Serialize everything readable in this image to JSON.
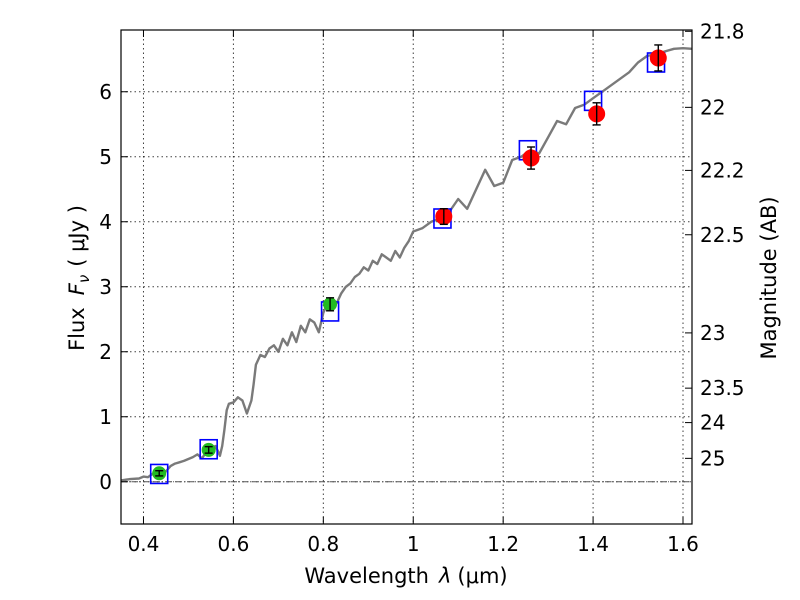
{
  "chart_data": {
    "type": "scatter",
    "xlabel_prefix": "Wavelength",
    "xlabel_symbol": "λ",
    "xlabel_unit": "(μm)",
    "ylabel_prefix": "Flux",
    "ylabel_symbol_main": "F",
    "ylabel_symbol_sub": "ν",
    "ylabel_unit": "( μJy )",
    "y2label": "Magnitude (AB)",
    "xlim": [
      0.35,
      1.62
    ],
    "ylim": [
      -0.65,
      6.95
    ],
    "x_ticks": [
      0.4,
      0.6,
      0.8,
      1.0,
      1.2,
      1.4,
      1.6
    ],
    "x_tick_labels": [
      "0.4",
      "0.6",
      "0.8",
      "1",
      "1.2",
      "1.4",
      "1.6"
    ],
    "y_ticks": [
      0,
      1,
      2,
      3,
      4,
      5,
      6
    ],
    "y_tick_labels": [
      "0",
      "1",
      "2",
      "3",
      "4",
      "5",
      "6"
    ],
    "mag_ticks": [
      {
        "flux": 6.93,
        "label": "21.8"
      },
      {
        "flux": 5.76,
        "label": "22"
      },
      {
        "flux": 4.79,
        "label": "22.2"
      },
      {
        "flux": 3.8,
        "label": "22.5"
      },
      {
        "flux": 2.29,
        "label": "23"
      },
      {
        "flux": 1.44,
        "label": "23.5"
      },
      {
        "flux": 0.91,
        "label": "24"
      },
      {
        "flux": 0.36,
        "label": "25"
      }
    ],
    "grid": true,
    "zero_line": 0,
    "colors": {
      "model": "#7a7a7a",
      "synthetic_box": "#0000ff",
      "detection_green": "#22bb22",
      "detection_red": "#ff0000",
      "errorbar": "#000000"
    },
    "series": [
      {
        "name": "model spectrum",
        "type": "line",
        "x": [
          0.35,
          0.37,
          0.39,
          0.4,
          0.41,
          0.42,
          0.43,
          0.44,
          0.45,
          0.46,
          0.47,
          0.48,
          0.49,
          0.5,
          0.51,
          0.52,
          0.53,
          0.54,
          0.55,
          0.56,
          0.565,
          0.57,
          0.575,
          0.58,
          0.585,
          0.59,
          0.6,
          0.61,
          0.62,
          0.63,
          0.64,
          0.645,
          0.65,
          0.66,
          0.67,
          0.68,
          0.69,
          0.7,
          0.71,
          0.72,
          0.73,
          0.74,
          0.75,
          0.76,
          0.77,
          0.78,
          0.79,
          0.8,
          0.81,
          0.82,
          0.83,
          0.84,
          0.85,
          0.86,
          0.87,
          0.88,
          0.89,
          0.9,
          0.91,
          0.92,
          0.93,
          0.94,
          0.95,
          0.96,
          0.97,
          0.98,
          0.99,
          1.0,
          1.02,
          1.04,
          1.06,
          1.08,
          1.1,
          1.12,
          1.14,
          1.16,
          1.18,
          1.2,
          1.22,
          1.24,
          1.26,
          1.28,
          1.3,
          1.32,
          1.34,
          1.36,
          1.38,
          1.4,
          1.42,
          1.44,
          1.46,
          1.48,
          1.5,
          1.52,
          1.54,
          1.56,
          1.58,
          1.6,
          1.62
        ],
        "y": [
          0.02,
          0.04,
          0.05,
          0.08,
          0.07,
          0.12,
          0.15,
          0.18,
          0.16,
          0.24,
          0.28,
          0.3,
          0.32,
          0.35,
          0.38,
          0.42,
          0.36,
          0.46,
          0.5,
          0.55,
          0.48,
          0.4,
          0.55,
          0.8,
          1.1,
          1.2,
          1.22,
          1.3,
          1.25,
          1.05,
          1.25,
          1.5,
          1.8,
          1.95,
          1.92,
          2.05,
          2.1,
          2.0,
          2.2,
          2.1,
          2.3,
          2.15,
          2.4,
          2.3,
          2.5,
          2.45,
          2.3,
          2.6,
          2.75,
          2.7,
          2.75,
          2.9,
          3.0,
          3.05,
          3.15,
          3.2,
          3.3,
          3.25,
          3.4,
          3.35,
          3.5,
          3.45,
          3.4,
          3.55,
          3.45,
          3.6,
          3.7,
          3.85,
          3.9,
          4.0,
          4.05,
          4.15,
          4.35,
          4.2,
          4.5,
          4.8,
          4.55,
          4.6,
          4.95,
          5.0,
          5.1,
          5.05,
          5.3,
          5.55,
          5.5,
          5.75,
          5.8,
          5.9,
          6.0,
          6.1,
          6.2,
          6.3,
          6.45,
          6.55,
          6.58,
          6.62,
          6.66,
          6.67,
          6.66
        ]
      },
      {
        "name": "synthetic photometry (boxes)",
        "type": "scatter",
        "x": [
          0.435,
          0.545,
          0.815,
          1.065,
          1.255,
          1.4,
          1.54
        ],
        "y": [
          0.12,
          0.5,
          2.62,
          4.05,
          5.1,
          5.86,
          6.45
        ]
      },
      {
        "name": "observed flux (green)",
        "type": "scatter",
        "x": [
          0.435,
          0.545,
          0.815
        ],
        "y": [
          0.13,
          0.49,
          2.73
        ],
        "yerr": [
          0.04,
          0.05,
          0.1
        ]
      },
      {
        "name": "observed flux (red)",
        "type": "scatter",
        "x": [
          1.068,
          1.262,
          1.408,
          1.545
        ],
        "y": [
          4.08,
          4.98,
          5.66,
          6.52
        ],
        "yerr": [
          0.12,
          0.17,
          0.17,
          0.2
        ]
      }
    ]
  }
}
